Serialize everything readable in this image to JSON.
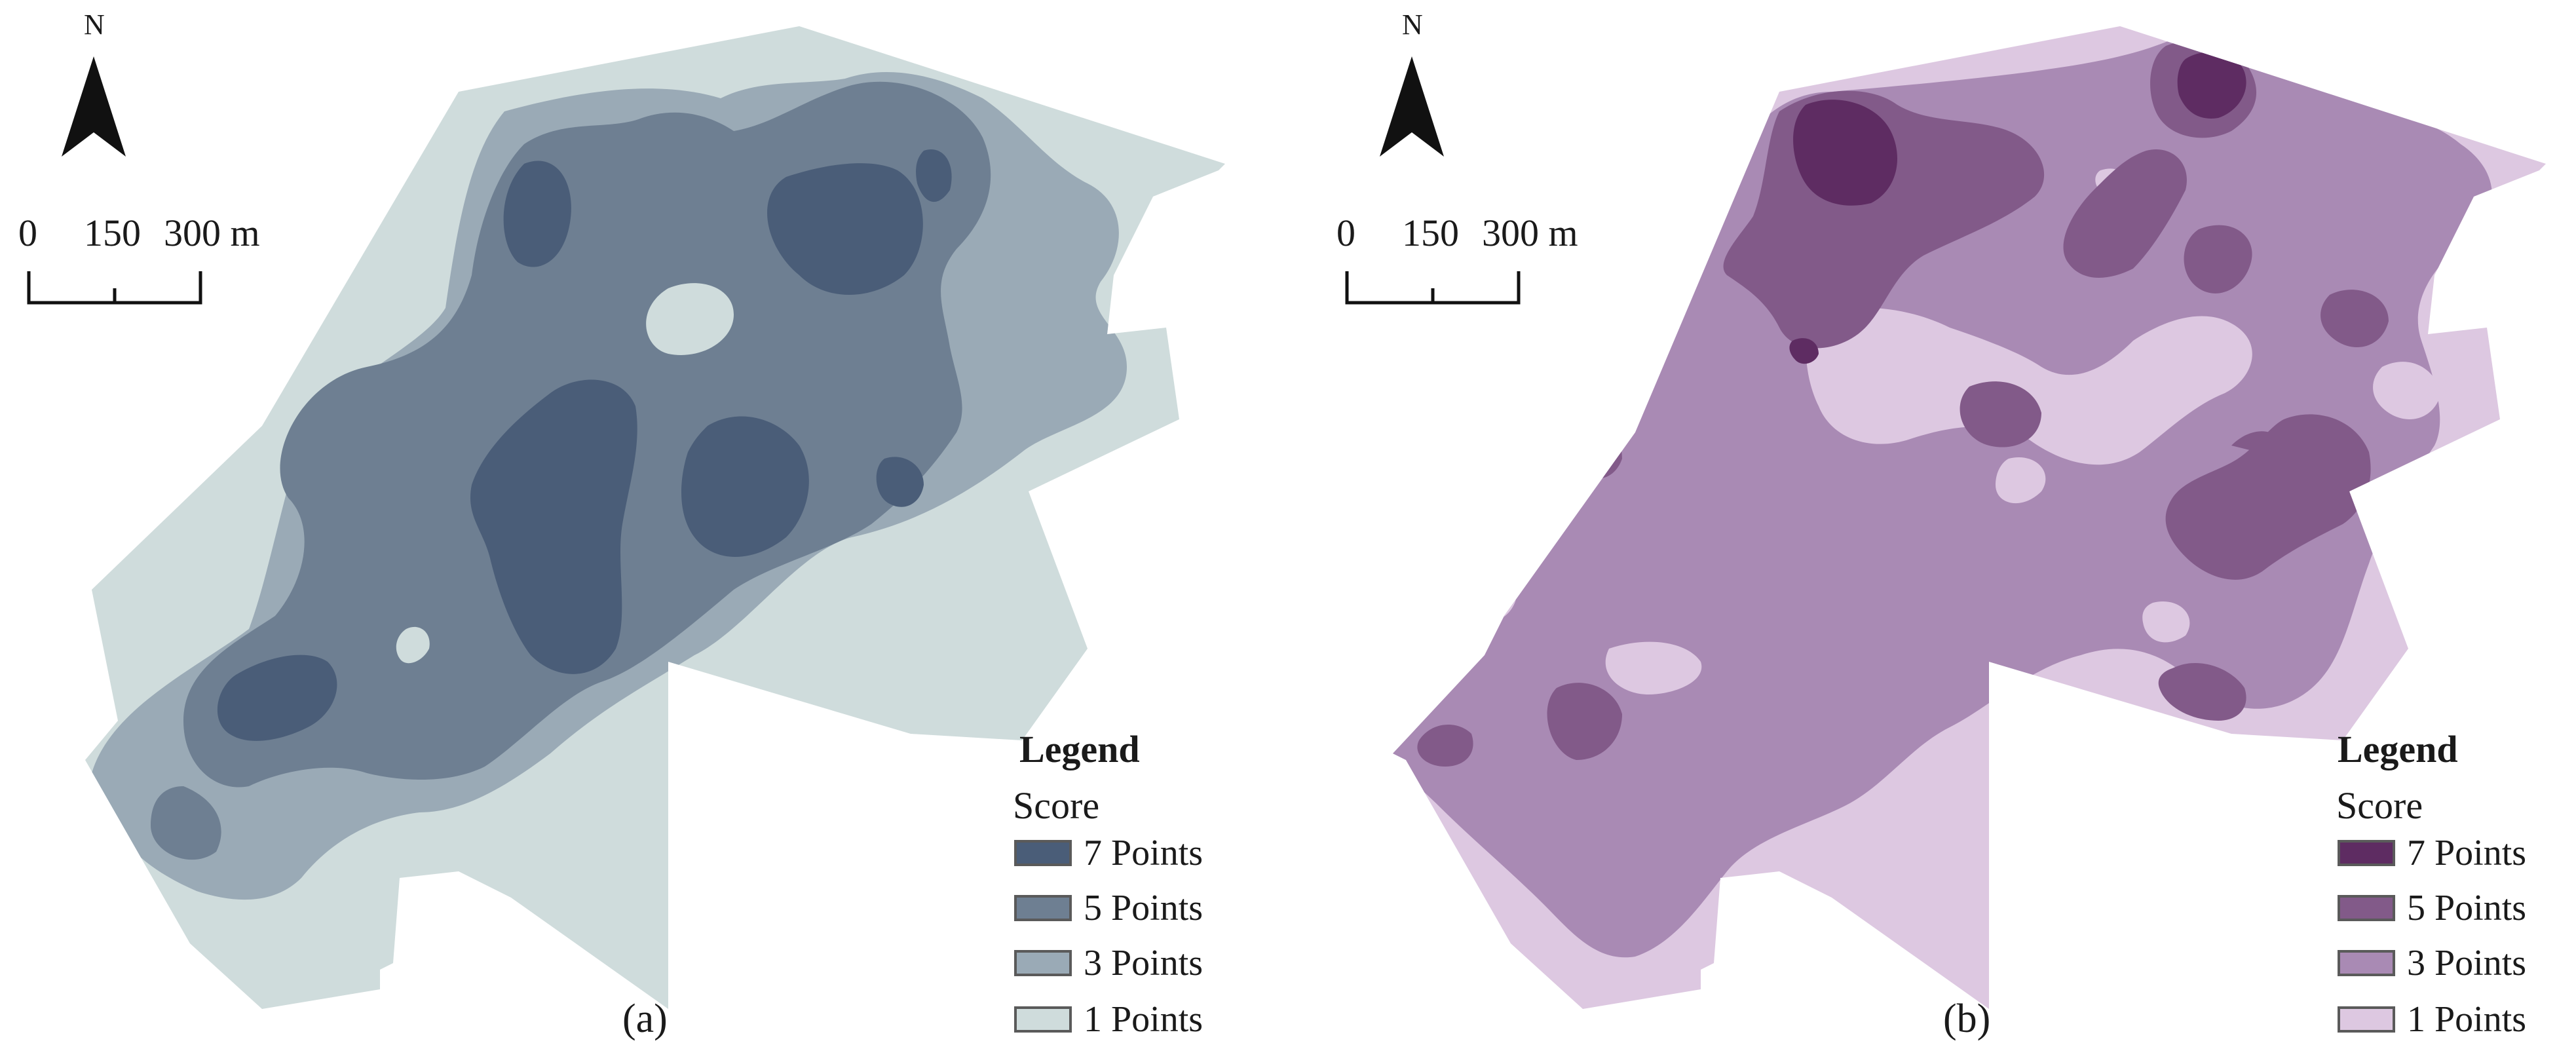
{
  "panels": [
    {
      "id": "a",
      "caption": "(a)",
      "north": "N",
      "scale": {
        "labels": [
          "0",
          "150",
          "300 m"
        ]
      },
      "legend": {
        "title": "Legend",
        "subtitle": "Score",
        "items": [
          {
            "label": "7 Points",
            "color": "#4a5d78"
          },
          {
            "label": "5 Points",
            "color": "#6e7f92"
          },
          {
            "label": "3 Points",
            "color": "#9aaab6"
          },
          {
            "label": "1 Points",
            "color": "#cfdcdc"
          }
        ]
      }
    },
    {
      "id": "b",
      "caption": "(b)",
      "north": "N",
      "scale": {
        "labels": [
          "0",
          "150",
          "300 m"
        ]
      },
      "legend": {
        "title": "Legend",
        "subtitle": "Score",
        "items": [
          {
            "label": "7 Points",
            "color": "#5e2c62"
          },
          {
            "label": "5 Points",
            "color": "#825a89"
          },
          {
            "label": "3 Points",
            "color": "#a98ab4"
          },
          {
            "label": "1 Points",
            "color": "#ddc8e1"
          }
        ]
      }
    }
  ]
}
